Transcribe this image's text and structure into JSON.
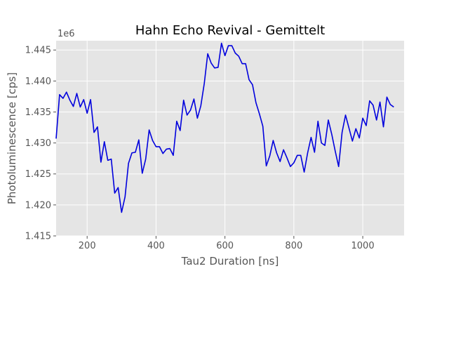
{
  "chart_data": {
    "type": "line",
    "title": "Hahn Echo Revival - Gemittelt",
    "xlabel": "Tau2 Duration [ns]",
    "ylabel": "Photoluminescence [cps]",
    "y_offset_label": "1e6",
    "xlim": [
      110,
      1120
    ],
    "ylim": [
      1.415,
      1.4465
    ],
    "x_ticks": [
      200,
      400,
      600,
      800,
      1000
    ],
    "x_tick_labels": [
      "200",
      "400",
      "600",
      "800",
      "1000"
    ],
    "y_ticks": [
      1.415,
      1.42,
      1.425,
      1.43,
      1.435,
      1.44,
      1.445
    ],
    "y_tick_labels": [
      "1.415",
      "1.420",
      "1.425",
      "1.430",
      "1.435",
      "1.440",
      "1.445"
    ],
    "grid": true,
    "colors": {
      "background": "#e5e5e5",
      "grid": "#ffffff",
      "line": "#0000dd"
    },
    "series": [
      {
        "color": "#0000dd",
        "x": [
          110,
          120,
          130,
          140,
          150,
          160,
          170,
          180,
          190,
          200,
          210,
          220,
          230,
          240,
          250,
          260,
          270,
          280,
          290,
          300,
          310,
          320,
          330,
          340,
          350,
          360,
          370,
          380,
          390,
          400,
          410,
          420,
          430,
          440,
          450,
          460,
          470,
          480,
          490,
          500,
          510,
          520,
          530,
          540,
          550,
          560,
          570,
          580,
          590,
          600,
          610,
          620,
          630,
          640,
          650,
          660,
          670,
          680,
          690,
          700,
          710,
          720,
          730,
          740,
          750,
          760,
          770,
          780,
          790,
          800,
          810,
          820,
          830,
          840,
          850,
          860,
          870,
          880,
          890,
          900,
          910,
          920,
          930,
          940,
          950,
          960,
          970,
          980,
          990,
          1000,
          1010,
          1020,
          1030,
          1040,
          1050,
          1060,
          1070,
          1080,
          1090
        ],
        "y": [
          1.4307,
          1.4378,
          1.4372,
          1.4382,
          1.4369,
          1.4359,
          1.438,
          1.4358,
          1.437,
          1.4348,
          1.437,
          1.4317,
          1.4326,
          1.4269,
          1.4302,
          1.4272,
          1.4274,
          1.4219,
          1.4228,
          1.4188,
          1.4213,
          1.4267,
          1.4284,
          1.4285,
          1.4305,
          1.4251,
          1.4274,
          1.4321,
          1.4304,
          1.4294,
          1.4294,
          1.4283,
          1.429,
          1.4291,
          1.428,
          1.4335,
          1.432,
          1.4369,
          1.4345,
          1.4353,
          1.4371,
          1.434,
          1.436,
          1.4396,
          1.4444,
          1.4429,
          1.4421,
          1.4422,
          1.4461,
          1.4441,
          1.4457,
          1.4457,
          1.4445,
          1.444,
          1.4428,
          1.4428,
          1.4402,
          1.4394,
          1.4365,
          1.4347,
          1.4327,
          1.4263,
          1.4279,
          1.4304,
          1.4284,
          1.427,
          1.4289,
          1.4276,
          1.4262,
          1.4268,
          1.428,
          1.428,
          1.4253,
          1.4284,
          1.4309,
          1.4285,
          1.4335,
          1.43,
          1.4296,
          1.4337,
          1.4314,
          1.4287,
          1.4262,
          1.4317,
          1.4345,
          1.4324,
          1.4303,
          1.4323,
          1.4308,
          1.434,
          1.4328,
          1.4368,
          1.4361,
          1.4337,
          1.4366,
          1.4326,
          1.4374,
          1.4362,
          1.4358
        ]
      }
    ]
  }
}
